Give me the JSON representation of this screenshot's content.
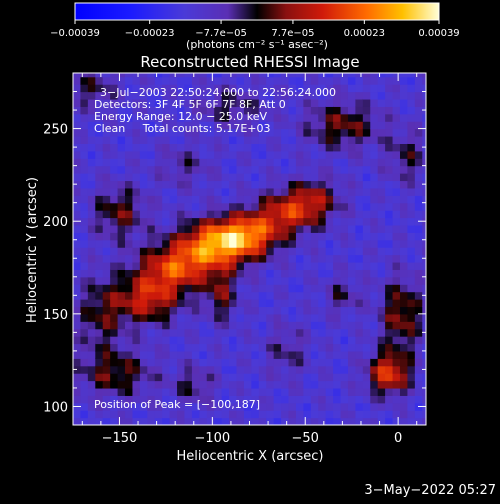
{
  "chart_data": {
    "type": "heatmap",
    "title": "Reconstructed RHESSI Image",
    "xlabel": "Heliocentric X (arcsec)",
    "ylabel": "Heliocentric Y (arcsec)",
    "xlim": [
      -175,
      15
    ],
    "ylim": [
      90,
      280
    ],
    "xticks": [
      -150,
      -100,
      -50,
      0
    ],
    "xtick_labels": [
      "−150",
      "−100",
      "−50",
      "0"
    ],
    "yticks": [
      100,
      150,
      200,
      250
    ],
    "ytick_labels": [
      "100",
      "150",
      "200",
      "250"
    ],
    "colorbar": {
      "range": [
        -0.00039,
        0.00039
      ],
      "ticks": [
        -0.00039,
        -0.00023,
        -7.7e-05,
        7.7e-05,
        0.00023,
        0.00039
      ],
      "tick_labels": [
        "−0.00039",
        "−0.00023",
        "−7.7e−05",
        "7.7e−05",
        "0.00023",
        "0.00039"
      ],
      "unit_label": "(photons cm⁻² s⁻¹ asec⁻²)"
    },
    "annotations": [
      "3−Jul−2003 22:50:24.000 to 22:56:24.000",
      "Detectors: 3F 4F 5F 6F 7F 8F, Att 0",
      "Energy Range: 12.0 − 25.0 keV",
      "Clean     Total counts: 5.17E+03"
    ],
    "peak_label": "Position of Peak = [−100,187]",
    "peak": [
      -100,
      187
    ],
    "sources": [
      {
        "x": -98,
        "y": 188,
        "sx": 14,
        "sy": 9,
        "amp": 0.00037
      },
      {
        "x": -120,
        "y": 175,
        "sx": 14,
        "sy": 9,
        "amp": 0.0003
      },
      {
        "x": -135,
        "y": 158,
        "sx": 12,
        "sy": 9,
        "amp": 0.00026
      },
      {
        "x": -80,
        "y": 193,
        "sx": 12,
        "sy": 8,
        "amp": 0.00028
      },
      {
        "x": -60,
        "y": 205,
        "sx": 12,
        "sy": 8,
        "amp": 0.00024
      },
      {
        "x": -45,
        "y": 212,
        "sx": 10,
        "sy": 8,
        "amp": 0.00018
      },
      {
        "x": -95,
        "y": 160,
        "sx": 6,
        "sy": 10,
        "amp": 0.00016
      },
      {
        "x": -150,
        "y": 205,
        "sx": 10,
        "sy": 10,
        "amp": 0.00017
      },
      {
        "x": -160,
        "y": 150,
        "sx": 9,
        "sy": 14,
        "amp": 0.00015
      },
      {
        "x": -152,
        "y": 118,
        "sx": 14,
        "sy": 9,
        "amp": 0.00017
      },
      {
        "x": -110,
        "y": 112,
        "sx": 8,
        "sy": 7,
        "amp": 0.00012
      },
      {
        "x": -30,
        "y": 252,
        "sx": 14,
        "sy": 9,
        "amp": 0.00018
      },
      {
        "x": -90,
        "y": 262,
        "sx": 12,
        "sy": 7,
        "amp": 0.00012
      },
      {
        "x": -5,
        "y": 118,
        "sx": 8,
        "sy": 8,
        "amp": 0.0003
      },
      {
        "x": 2,
        "y": 150,
        "sx": 8,
        "sy": 14,
        "amp": 0.0002
      },
      {
        "x": -30,
        "y": 160,
        "sx": 7,
        "sy": 7,
        "amp": 0.00011
      },
      {
        "x": -60,
        "y": 130,
        "sx": 8,
        "sy": 10,
        "amp": 0.0001
      },
      {
        "x": 5,
        "y": 235,
        "sx": 8,
        "sy": 10,
        "amp": 0.00012
      },
      {
        "x": -165,
        "y": 272,
        "sx": 10,
        "sy": 8,
        "amp": 0.00012
      },
      {
        "x": -115,
        "y": 230,
        "sx": 10,
        "sy": 8,
        "amp": 9e-05
      }
    ],
    "background": 4e-05
  },
  "footer": {
    "timestamp": "3−May−2022 05:27"
  }
}
